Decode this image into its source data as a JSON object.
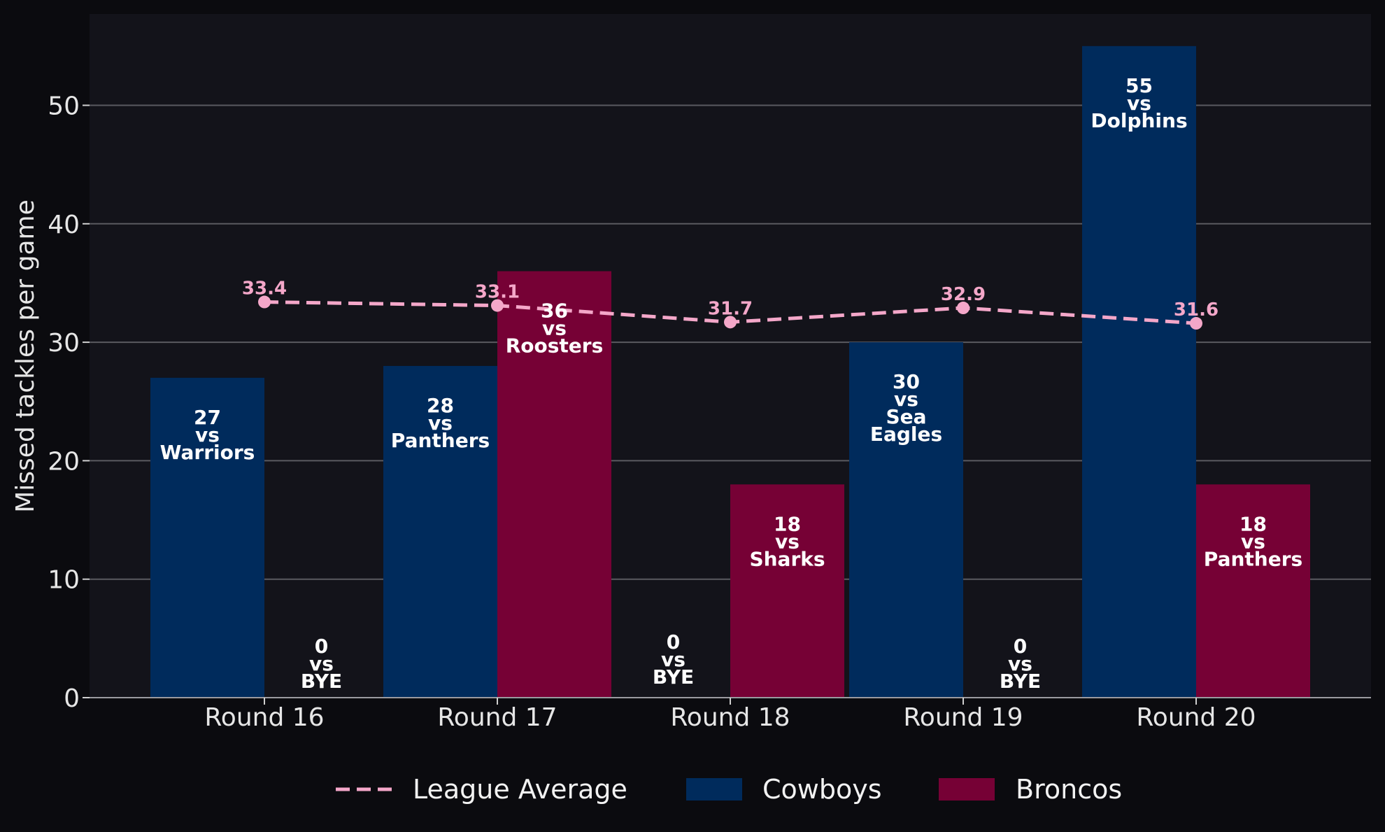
{
  "chart_data": {
    "type": "bar",
    "categories": [
      "Round 16",
      "Round 17",
      "Round 18",
      "Round 19",
      "Round 20"
    ],
    "ylabel": "Missed tackles per game",
    "xlabel": "",
    "ylim": [
      0,
      58
    ],
    "yticks": [
      0,
      10,
      20,
      30,
      40,
      50
    ],
    "grid": true,
    "legend_position": "bottom",
    "colors": {
      "background": "#0b0b0f",
      "plot_background": "#13131a",
      "grid": "#5a5a60",
      "Cowboys": "#002b5c",
      "Broncos": "#760135",
      "League Average": "#f4a7c9"
    },
    "series": [
      {
        "name": "Cowboys",
        "values": [
          27,
          28,
          0,
          30,
          55
        ],
        "opponents": [
          "Warriors",
          "Panthers",
          "BYE",
          "Sea Eagles",
          "Dolphins"
        ]
      },
      {
        "name": "Broncos",
        "values": [
          0,
          36,
          18,
          0,
          18
        ],
        "opponents": [
          "BYE",
          "Roosters",
          "Sharks",
          "BYE",
          "Panthers"
        ]
      }
    ],
    "line_series": {
      "name": "League Average",
      "style": "dashed",
      "values": [
        33.4,
        33.1,
        31.7,
        32.9,
        31.6
      ]
    },
    "legend": [
      "League Average",
      "Cowboys",
      "Broncos"
    ]
  }
}
